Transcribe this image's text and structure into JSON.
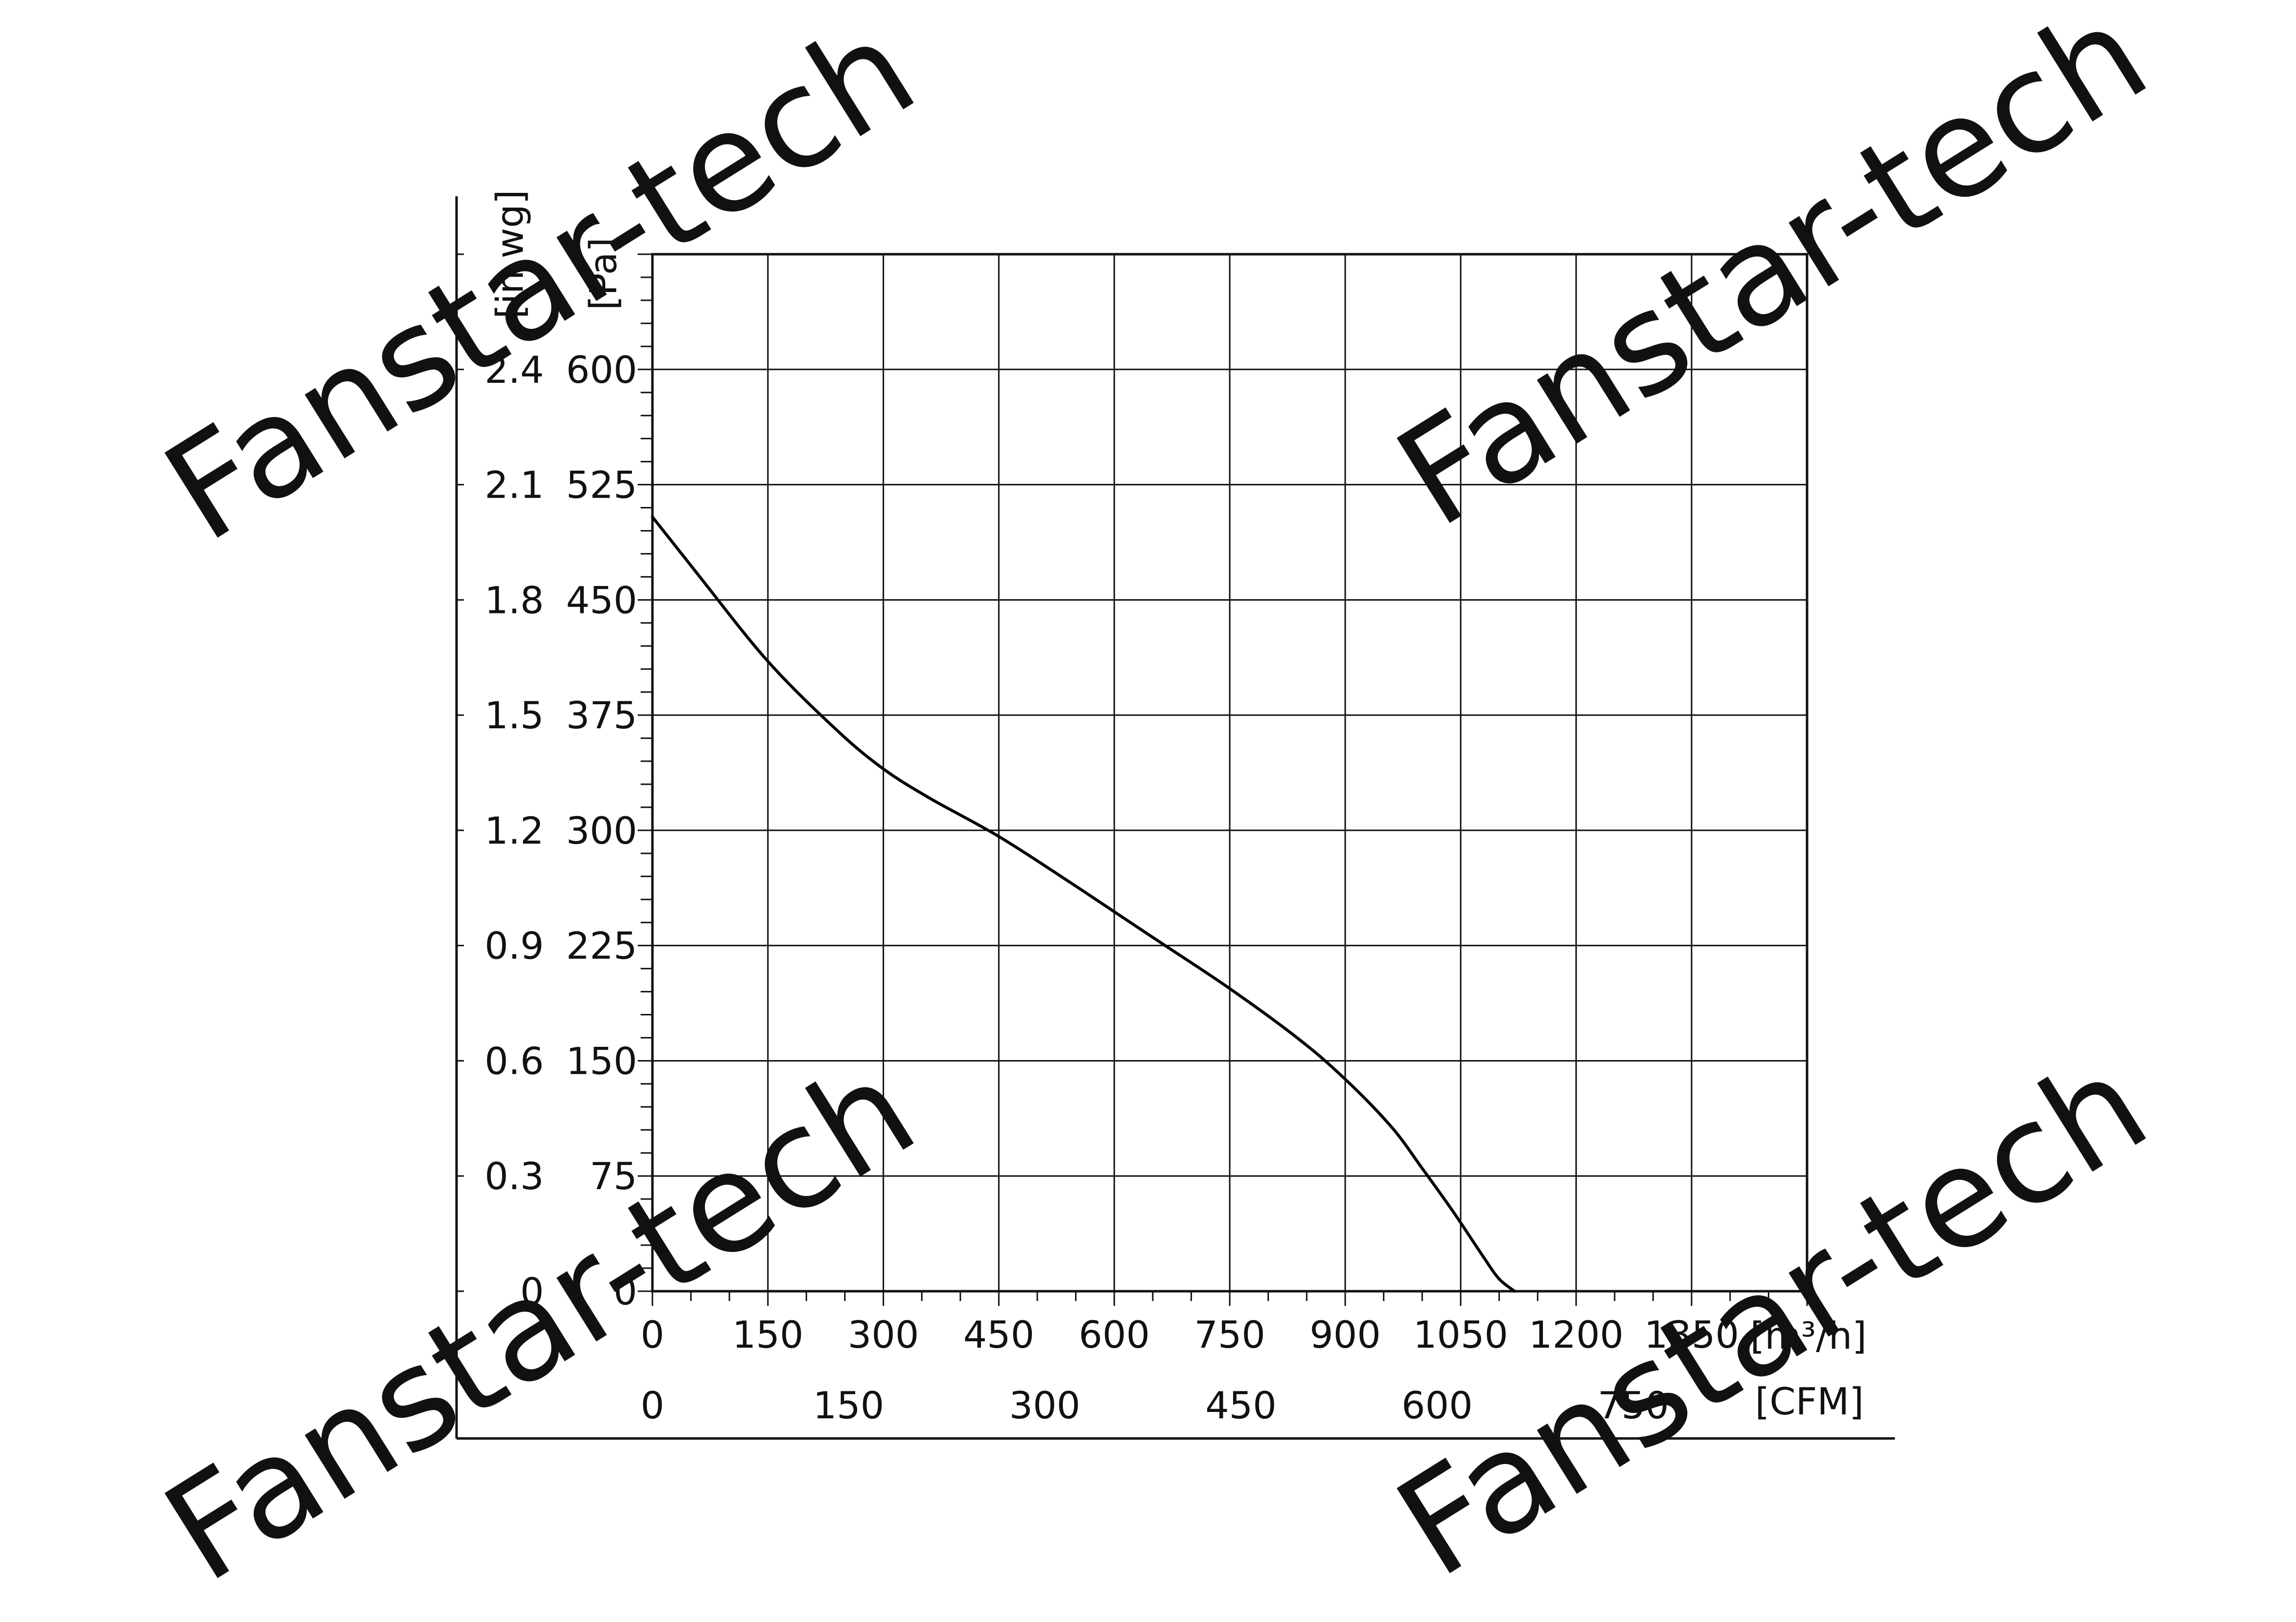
{
  "watermark": "Fanstar-tech",
  "chart_data": {
    "type": "line",
    "title": "",
    "x_axis": {
      "primary_unit": "[m³/h]",
      "primary_ticks": [
        "0",
        "150",
        "300",
        "450",
        "600",
        "750",
        "900",
        "1050",
        "1200",
        "1350"
      ],
      "xlim": [
        0,
        1500
      ],
      "secondary_unit": "[CFM]",
      "secondary_ticks": [
        "0",
        "150",
        "300",
        "450",
        "600",
        "750"
      ]
    },
    "y_axis": {
      "primary_unit": "[Pa]",
      "primary_ticks": [
        "0",
        "75",
        "150",
        "225",
        "300",
        "375",
        "450",
        "525",
        "600"
      ],
      "ylim": [
        0,
        675
      ],
      "secondary_unit": "[in.wg]",
      "secondary_ticks": [
        "0",
        "0.3",
        "0.6",
        "0.9",
        "1.2",
        "1.5",
        "1.8",
        "2.1",
        "2.4"
      ]
    },
    "grid": true,
    "series": [
      {
        "x": [
          0,
          60,
          150,
          240,
          300,
          360,
          450,
          540,
          600,
          660,
          750,
          840,
          900,
          960,
          1000,
          1040,
          1080,
          1100,
          1120
        ],
        "y": [
          504,
          466,
          410,
          365,
          340,
          321,
          296,
          267,
          247,
          227,
          197,
          164,
          138,
          107,
          80,
          52,
          22,
          8,
          0
        ]
      }
    ]
  }
}
